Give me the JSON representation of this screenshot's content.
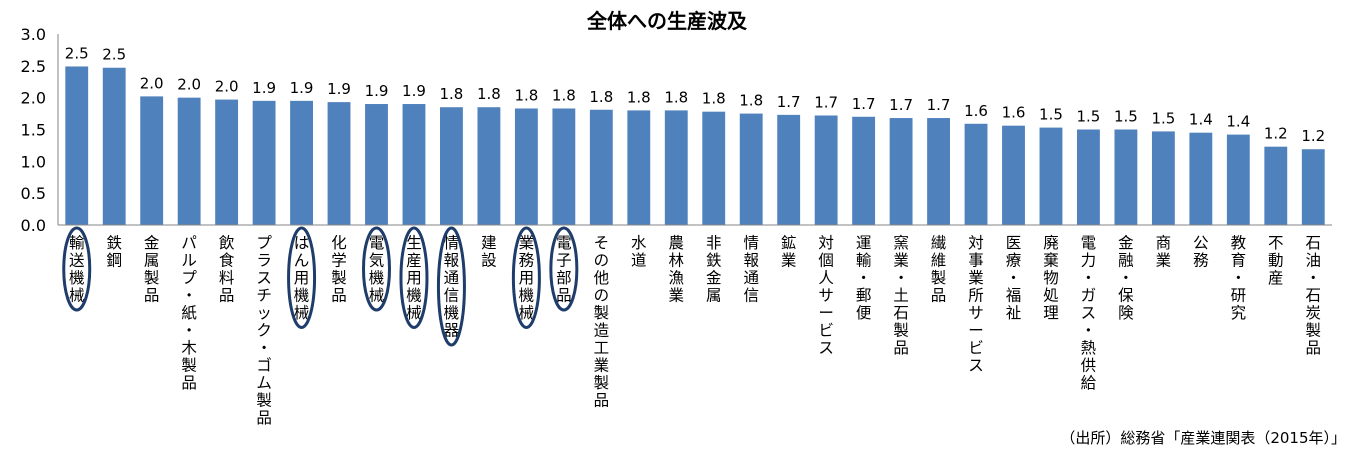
{
  "chart_data": {
    "type": "bar",
    "title": "全体への生産波及",
    "ylim": [
      0,
      3.0
    ],
    "yticks": [
      "0.0",
      "0.5",
      "1.0",
      "1.5",
      "2.0",
      "2.5",
      "3.0"
    ],
    "bar_color": "#4f81bd",
    "highlight_color": "#1f3d6b",
    "categories": [
      "輸送機械",
      "鉄鋼",
      "金属製品",
      "パルプ・紙・木製品",
      "飲食料品",
      "プラスチック・ゴム製品",
      "はん用機械",
      "化学製品",
      "電気機械",
      "生産用機械",
      "情報通信機器",
      "建設",
      "業務用機械",
      "電子部品",
      "その他の製造工業製品",
      "水道",
      "農林漁業",
      "非鉄金属",
      "情報通信",
      "鉱業",
      "対個人サービス",
      "運輸・郵便",
      "窯業・土石製品",
      "繊維製品",
      "対事業所サービス",
      "医療・福祉",
      "廃棄物処理",
      "電力・ガス・熱供給",
      "金融・保険",
      "商業",
      "公務",
      "教育・研究",
      "不動産",
      "石油・石炭製品"
    ],
    "values": [
      2.49,
      2.47,
      2.02,
      2.0,
      1.97,
      1.95,
      1.95,
      1.93,
      1.9,
      1.9,
      1.85,
      1.85,
      1.83,
      1.83,
      1.81,
      1.8,
      1.8,
      1.78,
      1.75,
      1.73,
      1.72,
      1.7,
      1.68,
      1.68,
      1.59,
      1.56,
      1.53,
      1.5,
      1.5,
      1.47,
      1.45,
      1.42,
      1.23,
      1.19
    ],
    "data_labels": [
      "2.5",
      "2.5",
      "2.0",
      "2.0",
      "2.0",
      "1.9",
      "1.9",
      "1.9",
      "1.9",
      "1.9",
      "1.8",
      "1.8",
      "1.8",
      "1.8",
      "1.8",
      "1.8",
      "1.8",
      "1.8",
      "1.8",
      "1.7",
      "1.7",
      "1.7",
      "1.7",
      "1.7",
      "1.6",
      "1.6",
      "1.5",
      "1.5",
      "1.5",
      "1.5",
      "1.4",
      "1.4",
      "1.2",
      "1.2"
    ],
    "highlighted_categories": [
      "輸送機械",
      "はん用機械",
      "電気機械",
      "生産用機械",
      "情報通信機器",
      "業務用機械",
      "電子部品"
    ]
  },
  "source": "（出所）総務省「産業連関表（2015年）」"
}
